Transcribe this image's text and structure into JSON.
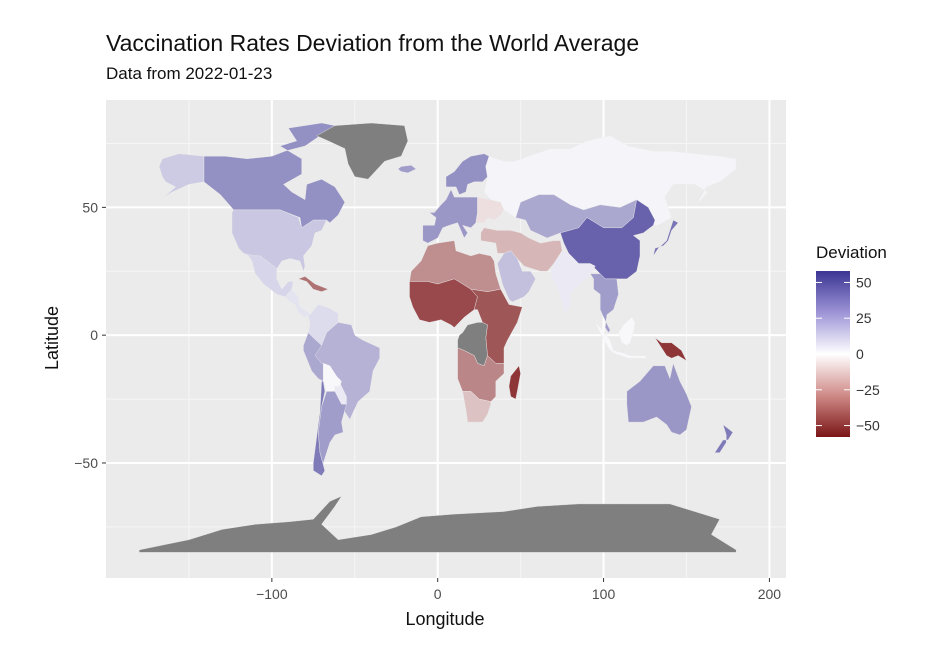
{
  "title": "Vaccination Rates Deviation from the World Average",
  "subtitle": "Data from 2022-01-23",
  "chart_data": {
    "type": "choropleth-map",
    "title": "Vaccination Rates Deviation from the World Average",
    "subtitle": "Data from 2022-01-23",
    "xlabel": "Longitude",
    "ylabel": "Latitude",
    "xlim": [
      -200,
      210
    ],
    "ylim": [
      -95,
      92
    ],
    "xticks": [
      -100,
      0,
      100,
      200
    ],
    "yticks": [
      -50,
      0,
      50
    ],
    "xtick_labels": [
      "−100",
      "0",
      "100",
      "200"
    ],
    "ytick_labels": [
      "−50",
      "0",
      "50"
    ],
    "grid": true,
    "panel_color": "#ebebeb",
    "no_data_color": "#7f7f7f",
    "legend": {
      "title": "Deviation",
      "position": "right",
      "range": [
        -58,
        58
      ],
      "breaks": [
        50,
        25,
        0,
        -25,
        -50
      ],
      "break_labels": [
        "50",
        "25",
        "0",
        "−25",
        "−50"
      ],
      "colors": {
        "high": "#3b3593",
        "mid": "#ffffff",
        "low": "#7b1517"
      }
    },
    "regions": [
      {
        "name": "Canada",
        "value": 32
      },
      {
        "name": "Alaska",
        "value": 15
      },
      {
        "name": "United States",
        "value": 16
      },
      {
        "name": "Mexico",
        "value": 12
      },
      {
        "name": "Central America",
        "value": 8
      },
      {
        "name": "Caribbean",
        "value": -35
      },
      {
        "name": "Greenland",
        "value": null
      },
      {
        "name": "Iceland",
        "value": 28
      },
      {
        "name": "Brazil",
        "value": 22
      },
      {
        "name": "Colombia/Venezuela",
        "value": 10
      },
      {
        "name": "Peru/Andes",
        "value": 25
      },
      {
        "name": "Bolivia",
        "value": 2
      },
      {
        "name": "Paraguay",
        "value": 6
      },
      {
        "name": "Argentina",
        "value": 28
      },
      {
        "name": "Chile",
        "value": 38
      },
      {
        "name": "Western Europe",
        "value": 30
      },
      {
        "name": "Scandinavia",
        "value": 32
      },
      {
        "name": "Eastern Europe",
        "value": -8
      },
      {
        "name": "Russia",
        "value": 3
      },
      {
        "name": "Kazakhstan/Mongolia",
        "value": 25
      },
      {
        "name": "China",
        "value": 45
      },
      {
        "name": "India",
        "value": 6
      },
      {
        "name": "Southeast Asia",
        "value": 28
      },
      {
        "name": "Indonesia",
        "value": 2
      },
      {
        "name": "Papua New Guinea",
        "value": -50
      },
      {
        "name": "Japan",
        "value": 40
      },
      {
        "name": "Middle East",
        "value": -18
      },
      {
        "name": "Saudi Arabia",
        "value": 18
      },
      {
        "name": "North Africa",
        "value": -28
      },
      {
        "name": "West Africa",
        "value": -45
      },
      {
        "name": "East Africa",
        "value": -42
      },
      {
        "name": "DR Congo",
        "value": null
      },
      {
        "name": "Southern Africa",
        "value": -30
      },
      {
        "name": "South Africa",
        "value": -15
      },
      {
        "name": "Madagascar",
        "value": -50
      },
      {
        "name": "Australia",
        "value": 30
      },
      {
        "name": "New Zealand",
        "value": 38
      },
      {
        "name": "Antarctica",
        "value": null
      }
    ]
  }
}
